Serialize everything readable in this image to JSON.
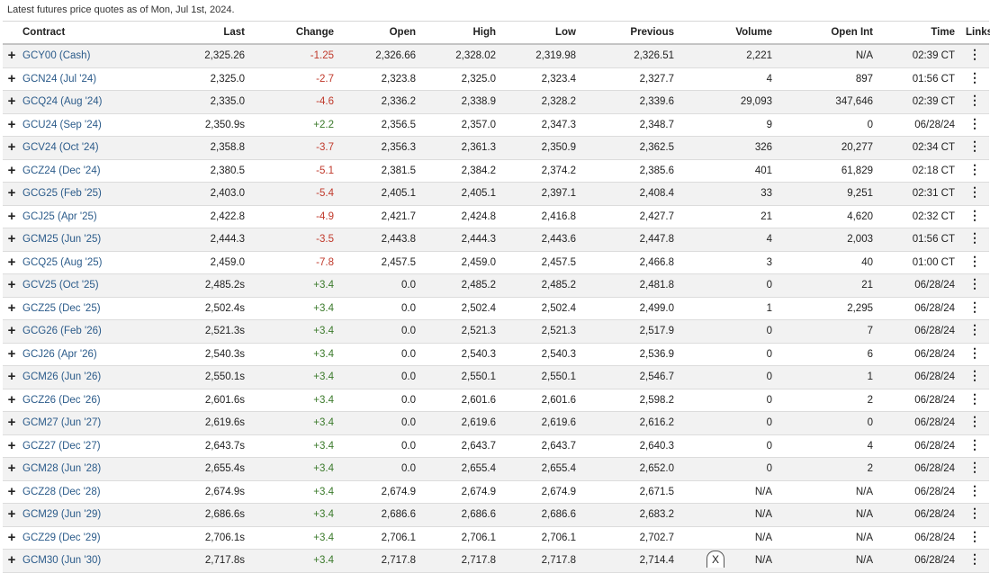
{
  "caption": "Latest futures price quotes as of Mon, Jul 1st, 2024.",
  "columns": [
    "Contract",
    "Last",
    "Change",
    "Open",
    "High",
    "Low",
    "Previous",
    "Volume",
    "Open Int",
    "Time",
    "Links"
  ],
  "rows": [
    {
      "contract": "GCY00 (Cash)",
      "last": "2,325.26",
      "change": "-1.25",
      "open": "2,326.66",
      "high": "2,328.02",
      "low": "2,319.98",
      "previous": "2,326.51",
      "volume": "2,221",
      "open_int": "N/A",
      "time": "02:39 CT"
    },
    {
      "contract": "GCN24 (Jul '24)",
      "last": "2,325.0",
      "change": "-2.7",
      "open": "2,323.8",
      "high": "2,325.0",
      "low": "2,323.4",
      "previous": "2,327.7",
      "volume": "4",
      "open_int": "897",
      "time": "01:56 CT"
    },
    {
      "contract": "GCQ24 (Aug '24)",
      "last": "2,335.0",
      "change": "-4.6",
      "open": "2,336.2",
      "high": "2,338.9",
      "low": "2,328.2",
      "previous": "2,339.6",
      "volume": "29,093",
      "open_int": "347,646",
      "time": "02:39 CT"
    },
    {
      "contract": "GCU24 (Sep '24)",
      "last": "2,350.9s",
      "change": "+2.2",
      "open": "2,356.5",
      "high": "2,357.0",
      "low": "2,347.3",
      "previous": "2,348.7",
      "volume": "9",
      "open_int": "0",
      "time": "06/28/24"
    },
    {
      "contract": "GCV24 (Oct '24)",
      "last": "2,358.8",
      "change": "-3.7",
      "open": "2,356.3",
      "high": "2,361.3",
      "low": "2,350.9",
      "previous": "2,362.5",
      "volume": "326",
      "open_int": "20,277",
      "time": "02:34 CT"
    },
    {
      "contract": "GCZ24 (Dec '24)",
      "last": "2,380.5",
      "change": "-5.1",
      "open": "2,381.5",
      "high": "2,384.2",
      "low": "2,374.2",
      "previous": "2,385.6",
      "volume": "401",
      "open_int": "61,829",
      "time": "02:18 CT"
    },
    {
      "contract": "GCG25 (Feb '25)",
      "last": "2,403.0",
      "change": "-5.4",
      "open": "2,405.1",
      "high": "2,405.1",
      "low": "2,397.1",
      "previous": "2,408.4",
      "volume": "33",
      "open_int": "9,251",
      "time": "02:31 CT"
    },
    {
      "contract": "GCJ25 (Apr '25)",
      "last": "2,422.8",
      "change": "-4.9",
      "open": "2,421.7",
      "high": "2,424.8",
      "low": "2,416.8",
      "previous": "2,427.7",
      "volume": "21",
      "open_int": "4,620",
      "time": "02:32 CT"
    },
    {
      "contract": "GCM25 (Jun '25)",
      "last": "2,444.3",
      "change": "-3.5",
      "open": "2,443.8",
      "high": "2,444.3",
      "low": "2,443.6",
      "previous": "2,447.8",
      "volume": "4",
      "open_int": "2,003",
      "time": "01:56 CT"
    },
    {
      "contract": "GCQ25 (Aug '25)",
      "last": "2,459.0",
      "change": "-7.8",
      "open": "2,457.5",
      "high": "2,459.0",
      "low": "2,457.5",
      "previous": "2,466.8",
      "volume": "3",
      "open_int": "40",
      "time": "01:00 CT"
    },
    {
      "contract": "GCV25 (Oct '25)",
      "last": "2,485.2s",
      "change": "+3.4",
      "open": "0.0",
      "high": "2,485.2",
      "low": "2,485.2",
      "previous": "2,481.8",
      "volume": "0",
      "open_int": "21",
      "time": "06/28/24"
    },
    {
      "contract": "GCZ25 (Dec '25)",
      "last": "2,502.4s",
      "change": "+3.4",
      "open": "0.0",
      "high": "2,502.4",
      "low": "2,502.4",
      "previous": "2,499.0",
      "volume": "1",
      "open_int": "2,295",
      "time": "06/28/24"
    },
    {
      "contract": "GCG26 (Feb '26)",
      "last": "2,521.3s",
      "change": "+3.4",
      "open": "0.0",
      "high": "2,521.3",
      "low": "2,521.3",
      "previous": "2,517.9",
      "volume": "0",
      "open_int": "7",
      "time": "06/28/24"
    },
    {
      "contract": "GCJ26 (Apr '26)",
      "last": "2,540.3s",
      "change": "+3.4",
      "open": "0.0",
      "high": "2,540.3",
      "low": "2,540.3",
      "previous": "2,536.9",
      "volume": "0",
      "open_int": "6",
      "time": "06/28/24"
    },
    {
      "contract": "GCM26 (Jun '26)",
      "last": "2,550.1s",
      "change": "+3.4",
      "open": "0.0",
      "high": "2,550.1",
      "low": "2,550.1",
      "previous": "2,546.7",
      "volume": "0",
      "open_int": "1",
      "time": "06/28/24"
    },
    {
      "contract": "GCZ26 (Dec '26)",
      "last": "2,601.6s",
      "change": "+3.4",
      "open": "0.0",
      "high": "2,601.6",
      "low": "2,601.6",
      "previous": "2,598.2",
      "volume": "0",
      "open_int": "2",
      "time": "06/28/24"
    },
    {
      "contract": "GCM27 (Jun '27)",
      "last": "2,619.6s",
      "change": "+3.4",
      "open": "0.0",
      "high": "2,619.6",
      "low": "2,619.6",
      "previous": "2,616.2",
      "volume": "0",
      "open_int": "0",
      "time": "06/28/24"
    },
    {
      "contract": "GCZ27 (Dec '27)",
      "last": "2,643.7s",
      "change": "+3.4",
      "open": "0.0",
      "high": "2,643.7",
      "low": "2,643.7",
      "previous": "2,640.3",
      "volume": "0",
      "open_int": "4",
      "time": "06/28/24"
    },
    {
      "contract": "GCM28 (Jun '28)",
      "last": "2,655.4s",
      "change": "+3.4",
      "open": "0.0",
      "high": "2,655.4",
      "low": "2,655.4",
      "previous": "2,652.0",
      "volume": "0",
      "open_int": "2",
      "time": "06/28/24"
    },
    {
      "contract": "GCZ28 (Dec '28)",
      "last": "2,674.9s",
      "change": "+3.4",
      "open": "2,674.9",
      "high": "2,674.9",
      "low": "2,674.9",
      "previous": "2,671.5",
      "volume": "N/A",
      "open_int": "N/A",
      "time": "06/28/24"
    },
    {
      "contract": "GCM29 (Jun '29)",
      "last": "2,686.6s",
      "change": "+3.4",
      "open": "2,686.6",
      "high": "2,686.6",
      "low": "2,686.6",
      "previous": "2,683.2",
      "volume": "N/A",
      "open_int": "N/A",
      "time": "06/28/24"
    },
    {
      "contract": "GCZ29 (Dec '29)",
      "last": "2,706.1s",
      "change": "+3.4",
      "open": "2,706.1",
      "high": "2,706.1",
      "low": "2,706.1",
      "previous": "2,702.7",
      "volume": "N/A",
      "open_int": "N/A",
      "time": "06/28/24"
    },
    {
      "contract": "GCM30 (Jun '30)",
      "last": "2,717.8s",
      "change": "+3.4",
      "open": "2,717.8",
      "high": "2,717.8",
      "low": "2,717.8",
      "previous": "2,714.4",
      "volume": "N/A",
      "open_int": "N/A",
      "time": "06/28/24"
    }
  ],
  "icons": {
    "expand": "plus-icon",
    "links": "more-vertical-icon",
    "close": "close-icon"
  },
  "glyphs": {
    "expand": "+",
    "links": "⋮",
    "close": "X"
  },
  "colors": {
    "link": "#2b5b8a",
    "negative": "#c0392b",
    "positive": "#3b7a2b",
    "alt_row": "#f2f2f2"
  }
}
